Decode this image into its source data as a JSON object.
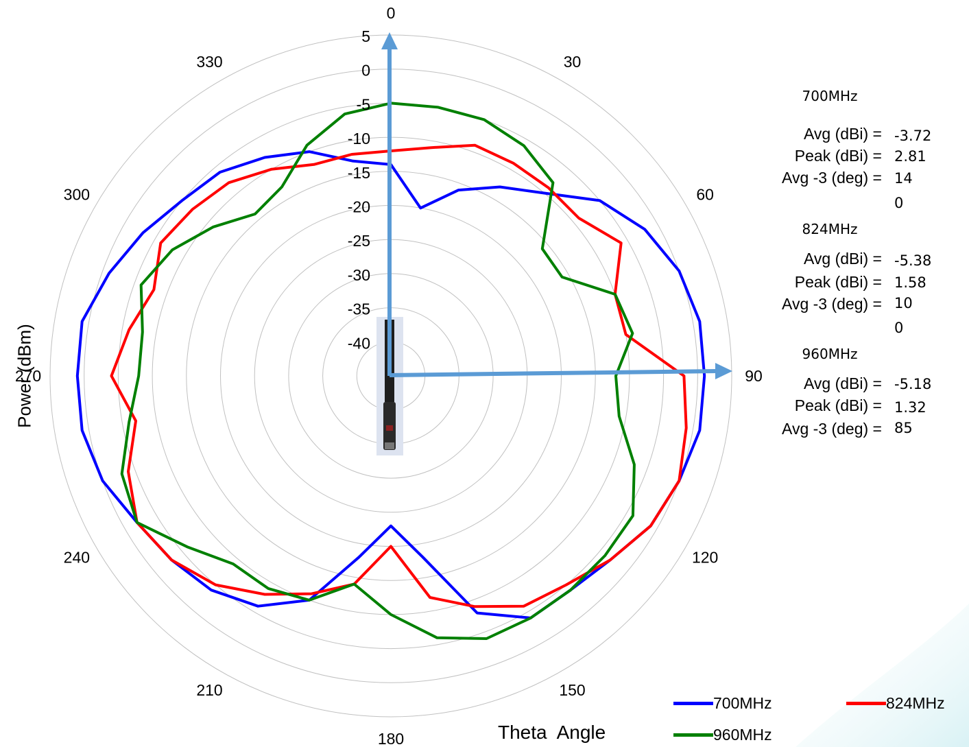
{
  "chart_data": {
    "type": "polar-line",
    "r_axis": {
      "ticks": [
        "5",
        "0",
        "-5",
        "-10",
        "-15",
        "-20",
        "-25",
        "-30",
        "-35",
        "-40"
      ],
      "rlim": [
        -45,
        5
      ],
      "title": "Power (dBm)"
    },
    "theta_axis": {
      "ticks": [
        "0",
        "30",
        "60",
        "90",
        "120",
        "150",
        "180",
        "210",
        "240",
        "270",
        "300",
        "330"
      ],
      "title": "Theta  Angle"
    },
    "series": [
      {
        "name": "700MHz",
        "color": "#0000ff",
        "theta": [
          0,
          10,
          20,
          30,
          40,
          50,
          60,
          70,
          80,
          90,
          100,
          110,
          120,
          130,
          140,
          150,
          160,
          170,
          180,
          190,
          200,
          210,
          220,
          230,
          240,
          250,
          260,
          270,
          280,
          290,
          300,
          310,
          320,
          330,
          340,
          350
        ],
        "r": [
          -14,
          -20,
          -16,
          -13,
          -10,
          -5,
          -2,
          0,
          1,
          1,
          1,
          0,
          -1,
          -3,
          -4,
          -4,
          -8,
          -18,
          -23,
          -18,
          -10,
          -6,
          -4,
          -3,
          -2,
          0,
          1,
          1,
          1,
          -1,
          -3,
          -5,
          -6,
          -8,
          -10,
          -13
        ]
      },
      {
        "name": "824MHz",
        "color": "#ff0000",
        "theta": [
          0,
          10,
          20,
          30,
          40,
          50,
          60,
          70,
          80,
          90,
          100,
          110,
          120,
          130,
          140,
          150,
          160,
          170,
          180,
          190,
          200,
          210,
          220,
          230,
          240,
          250,
          260,
          270,
          280,
          290,
          300,
          310,
          320,
          330,
          340,
          350
        ],
        "r": [
          -12,
          -11,
          -9,
          -9,
          -9,
          -9,
          -6,
          -10,
          -10,
          -2,
          -1,
          0,
          -1,
          -3,
          -5,
          -6,
          -9,
          -12,
          -20,
          -14,
          -11,
          -8,
          -5,
          -3,
          -2,
          -4,
          -7,
          -4,
          -6,
          -8,
          -6,
          -7,
          -8,
          -10,
          -12,
          -12
        ]
      },
      {
        "name": "960MHz",
        "color": "#008000",
        "theta": [
          0,
          10,
          20,
          30,
          40,
          50,
          60,
          70,
          80,
          90,
          100,
          110,
          120,
          130,
          140,
          150,
          160,
          170,
          180,
          190,
          200,
          210,
          220,
          230,
          240,
          250,
          260,
          270,
          280,
          290,
          300,
          310,
          320,
          330,
          340,
          350
        ],
        "r": [
          -5,
          -5,
          -5,
          -6,
          -8,
          -16,
          -16,
          -10,
          -9,
          -12,
          -11,
          -7,
          -4,
          -4,
          -4,
          -4,
          -4,
          -6,
          -10,
          -14,
          -10,
          -9,
          -9,
          -6,
          -2,
          -3,
          -6,
          -8,
          -8,
          -6,
          -8,
          -11,
          -14,
          -13,
          -9,
          -6
        ]
      }
    ],
    "annotations": [
      {
        "title": "700MHz",
        "rows": [
          {
            "label": "Avg (dBi) =",
            "value": "-3.72"
          },
          {
            "label": "Peak (dBi) =",
            "value": "2.81"
          },
          {
            "label": "Avg -3 (deg) =",
            "value": "14"
          },
          {
            "label": "",
            "value": "0"
          }
        ]
      },
      {
        "title": "824MHz",
        "rows": [
          {
            "label": "Avg (dBi) =",
            "value": "-5.38"
          },
          {
            "label": "Peak (dBi) =",
            "value": "1.58"
          },
          {
            "label": "Avg -3 (deg) =",
            "value": "10"
          },
          {
            "label": "",
            "value": "0"
          }
        ]
      },
      {
        "title": "960MHz",
        "rows": [
          {
            "label": "Avg (dBi) =",
            "value": "-5.18"
          },
          {
            "label": "Peak (dBi) =",
            "value": "1.32"
          },
          {
            "label": "Avg -3 (deg) =",
            "value": "85"
          }
        ]
      }
    ],
    "legend": {
      "position": "bottom-right",
      "entries": [
        "700MHz",
        "824MHz",
        "960MHz"
      ]
    },
    "grid": true
  },
  "colors": {
    "axis_arrow": "#5b9bd5",
    "grid": "#c0c0c0",
    "antenna": "#1a1a1a",
    "background_fade": "#d9f0f4"
  }
}
